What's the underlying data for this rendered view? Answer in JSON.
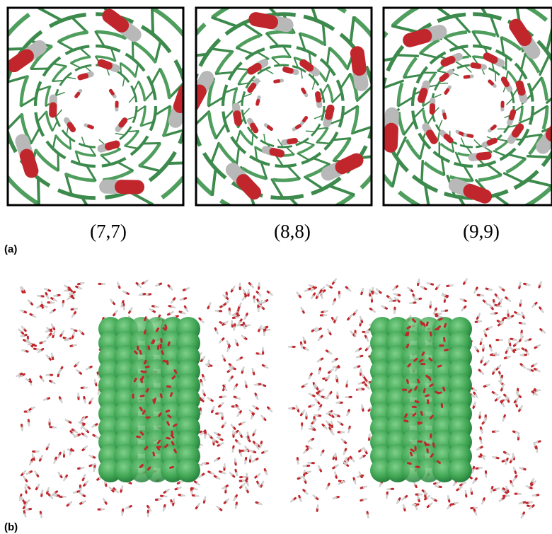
{
  "panel_a": {
    "label": "(a)",
    "captions": [
      "(7,7)",
      "(8,8)",
      "(9,9)"
    ]
  },
  "panel_b": {
    "label": "(b)"
  }
}
